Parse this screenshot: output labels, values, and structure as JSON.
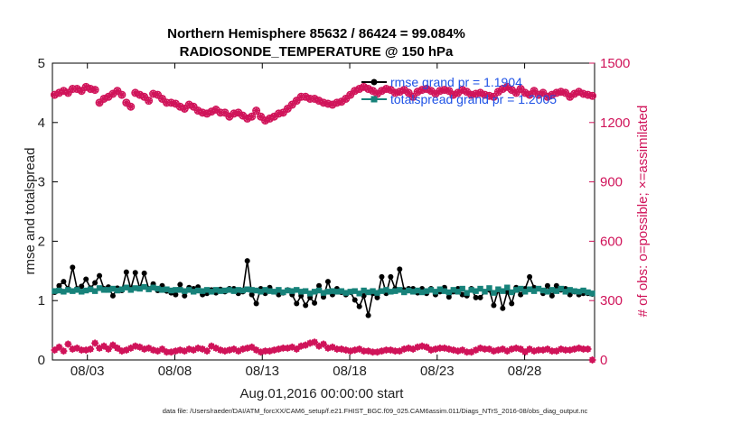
{
  "chart_data": {
    "type": "line",
    "title": "Northern Hemisphere 85632 / 86424 = 99.084%",
    "subtitle": "RADIOSONDE_TEMPERATURE @ 150 hPa",
    "xlabel": "Aug.01,2016 00:00:00 start",
    "ylabel": "rmse and totalspread",
    "y2label": "# of obs: o=possible; ×=assimilated",
    "footer": "data file: /Users/raeder/DAI/ATM_forcXX/CAM6_setup/f.e21.FHIST_BGC.f09_025.CAM6assim.011/Diags_NTrS_2016-08/obs_diag_output.nc",
    "xlim": [
      1.0,
      32.0
    ],
    "ylim": [
      0,
      5
    ],
    "y2lim": [
      0,
      1500
    ],
    "x_ticks": [
      3,
      8,
      13,
      18,
      23,
      28
    ],
    "x_tick_labels": [
      "08/03",
      "08/08",
      "08/13",
      "08/18",
      "08/23",
      "08/28"
    ],
    "y_ticks": [
      "0",
      "1",
      "2",
      "3",
      "4",
      "5"
    ],
    "y2_ticks": [
      "0",
      "300",
      "600",
      "900",
      "1200",
      "1500"
    ],
    "legend": {
      "placement": "top-right",
      "rmse": "rmse grand pr = 1.1904",
      "spread": "totalspread grand pr = 1.2005"
    },
    "colors": {
      "rmse": "#000000",
      "spread": "#17827a",
      "obs": "#d0145a",
      "legend_text": "#1e52e6"
    },
    "series": [
      {
        "name": "rmse",
        "axis": "left",
        "values": [
          1.14,
          1.25,
          1.32,
          1.2,
          1.56,
          1.2,
          1.24,
          1.36,
          1.21,
          1.3,
          1.42,
          1.2,
          1.23,
          1.08,
          1.21,
          1.17,
          1.48,
          1.2,
          1.47,
          1.21,
          1.46,
          1.2,
          1.28,
          1.17,
          1.25,
          1.16,
          1.13,
          1.1,
          1.27,
          1.08,
          1.22,
          1.2,
          1.23,
          1.1,
          1.12,
          1.18,
          1.13,
          1.19,
          1.15,
          1.2,
          1.2,
          1.12,
          1.15,
          1.67,
          1.1,
          0.95,
          1.2,
          1.12,
          1.22,
          1.15,
          1.1,
          1.13,
          1.18,
          1.1,
          0.95,
          1.08,
          0.92,
          1.05,
          0.96,
          1.25,
          1.06,
          1.32,
          1.1,
          1.2,
          1.14,
          1.1,
          1.14,
          1.01,
          0.9,
          1.08,
          0.75,
          1.12,
          1.05,
          1.4,
          1.12,
          1.4,
          1.2,
          1.53,
          1.18,
          1.2,
          1.2,
          1.13,
          1.2,
          1.12,
          1.2,
          1.1,
          1.15,
          1.22,
          1.06,
          1.15,
          1.2,
          1.1,
          1.08,
          1.2,
          1.05,
          1.05,
          1.15,
          1.18,
          0.92,
          1.18,
          0.87,
          1.15,
          0.95,
          1.22,
          1.1,
          1.2,
          1.4,
          1.22,
          1.2,
          1.12,
          1.25,
          1.08,
          1.25,
          1.18,
          1.2,
          1.1,
          1.15,
          1.1,
          1.12,
          1.12,
          1.11
        ]
      },
      {
        "name": "totalspread",
        "axis": "left",
        "values": [
          1.16,
          1.17,
          1.15,
          1.18,
          1.16,
          1.18,
          1.15,
          1.17,
          1.19,
          1.16,
          1.21,
          1.18,
          1.18,
          1.2,
          1.17,
          1.19,
          1.22,
          1.18,
          1.21,
          1.2,
          1.23,
          1.19,
          1.22,
          1.2,
          1.18,
          1.19,
          1.17,
          1.18,
          1.18,
          1.16,
          1.18,
          1.15,
          1.17,
          1.16,
          1.18,
          1.15,
          1.18,
          1.16,
          1.17,
          1.18,
          1.16,
          1.18,
          1.17,
          1.19,
          1.18,
          1.17,
          1.15,
          1.18,
          1.16,
          1.15,
          1.18,
          1.14,
          1.17,
          1.16,
          1.18,
          1.15,
          1.16,
          1.12,
          1.15,
          1.17,
          1.13,
          1.15,
          1.16,
          1.15,
          1.16,
          1.13,
          1.15,
          1.16,
          1.12,
          1.17,
          1.14,
          1.16,
          1.13,
          1.16,
          1.18,
          1.15,
          1.16,
          1.18,
          1.14,
          1.17,
          1.15,
          1.17,
          1.14,
          1.16,
          1.18,
          1.15,
          1.19,
          1.16,
          1.14,
          1.18,
          1.15,
          1.2,
          1.13,
          1.18,
          1.16,
          1.2,
          1.15,
          1.21,
          1.13,
          1.19,
          1.16,
          1.22,
          1.14,
          1.18,
          1.2,
          1.15,
          1.19,
          1.16,
          1.2,
          1.17,
          1.15,
          1.18,
          1.16,
          1.2,
          1.15,
          1.18,
          1.16,
          1.15,
          1.17,
          1.14,
          1.12
        ]
      },
      {
        "name": "obs possible",
        "axis": "right",
        "values": [
          1340,
          1350,
          1360,
          1350,
          1370,
          1370,
          1360,
          1380,
          1370,
          1365,
          1300,
          1320,
          1330,
          1345,
          1360,
          1340,
          1300,
          1280,
          1350,
          1340,
          1330,
          1310,
          1345,
          1340,
          1320,
          1300,
          1300,
          1295,
          1280,
          1270,
          1290,
          1280,
          1260,
          1250,
          1245,
          1255,
          1265,
          1250,
          1250,
          1230,
          1245,
          1250,
          1235,
          1220,
          1230,
          1260,
          1230,
          1210,
          1220,
          1230,
          1245,
          1250,
          1270,
          1290,
          1310,
          1330,
          1330,
          1320,
          1320,
          1310,
          1300,
          1295,
          1290,
          1300,
          1305,
          1320,
          1340,
          1360,
          1370,
          1380,
          1370,
          1360,
          1345,
          1360,
          1370,
          1365,
          1350,
          1355,
          1365,
          1350,
          1330,
          1355,
          1365,
          1370,
          1360,
          1345,
          1360,
          1365,
          1360,
          1340,
          1350,
          1365,
          1355,
          1340,
          1345,
          1350,
          1340,
          1335,
          1330,
          1355,
          1370,
          1380,
          1365,
          1350,
          1370,
          1350,
          1340,
          1360,
          1340,
          1350,
          1330,
          1340,
          1350,
          1355,
          1350,
          1330,
          1345,
          1355,
          1345,
          1340,
          1335
        ]
      },
      {
        "name": "obs assimilated",
        "axis": "right",
        "values": [
          50,
          65,
          45,
          80,
          55,
          60,
          50,
          50,
          55,
          85,
          60,
          70,
          55,
          75,
          60,
          45,
          50,
          60,
          70,
          65,
          55,
          60,
          50,
          45,
          55,
          40,
          40,
          45,
          50,
          45,
          55,
          50,
          60,
          55,
          45,
          70,
          60,
          50,
          45,
          50,
          55,
          45,
          55,
          60,
          65,
          50,
          40,
          45,
          45,
          50,
          55,
          60,
          60,
          65,
          55,
          70,
          75,
          85,
          90,
          70,
          80,
          60,
          65,
          55,
          55,
          50,
          45,
          50,
          55,
          45,
          45,
          40,
          40,
          45,
          50,
          50,
          45,
          45,
          55,
          60,
          55,
          65,
          70,
          65,
          50,
          55,
          60,
          60,
          55,
          50,
          45,
          50,
          40,
          40,
          50,
          60,
          55,
          55,
          45,
          50,
          55,
          45,
          55,
          60,
          55,
          40,
          55,
          45,
          50,
          50,
          55,
          45,
          45,
          55,
          50,
          50,
          55,
          60,
          55,
          55,
          0
        ]
      }
    ]
  }
}
